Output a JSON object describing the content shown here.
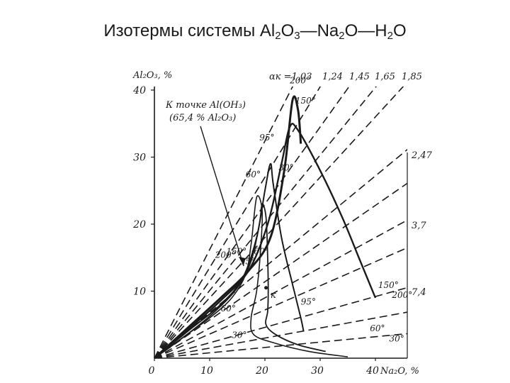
{
  "slide": {
    "title_main": "Изотермы системы Al",
    "title_sub1": "2",
    "title_mid1": "O",
    "title_sub2": "3",
    "title_mid2": "—Na",
    "title_sub3": "2",
    "title_mid3": "O—H",
    "title_sub4": "2",
    "title_end": "O"
  },
  "chart_data": {
    "type": "line",
    "title": "Изотермы системы Al2O3—Na2O—H2O",
    "xlabel": "Na₂O, %",
    "ylabel": "Al₂O₃, %",
    "xlim": [
      0,
      45
    ],
    "ylim": [
      0,
      42
    ],
    "x_ticks": [
      "0",
      "10",
      "20",
      "30",
      "40"
    ],
    "y_ticks": [
      "10",
      "20",
      "30",
      "40"
    ],
    "alpha_header": "αк =1,03",
    "caustic_ratio_rays": [
      {
        "label": "1,03",
        "slope": 1.62
      },
      {
        "label": "1,24",
        "slope": 1.35
      },
      {
        "label": "1,45",
        "slope": 1.15
      },
      {
        "label": "1,65",
        "slope": 1.01
      },
      {
        "label": "1,85",
        "slope": 0.9
      },
      {
        "label": "2,47",
        "slope": 0.68
      },
      {
        "label": "3,7",
        "slope": 0.45
      },
      {
        "label": "7,4",
        "slope": 0.23
      }
    ],
    "extra_rays": [
      {
        "slope": 0.57
      },
      {
        "slope": 0.36
      },
      {
        "slope": 0.15
      },
      {
        "slope": 0.08
      }
    ],
    "annotation": {
      "line1": "К точке Al(OH₃)",
      "line2": "(65,4 % Al₂O₃)"
    },
    "point_label": "к",
    "isotherms": [
      {
        "name": "200°",
        "points": [
          [
            0,
            0
          ],
          [
            6,
            4.5
          ],
          [
            12,
            9
          ],
          [
            17,
            13
          ],
          [
            21,
            18
          ],
          [
            23.5,
            28
          ],
          [
            25,
            38.5
          ],
          [
            26,
            37
          ],
          [
            26.5,
            32
          ]
        ]
      },
      {
        "name": "150°",
        "points": [
          [
            0,
            0
          ],
          [
            6,
            4.2
          ],
          [
            12,
            8.6
          ],
          [
            17,
            13
          ],
          [
            20.5,
            20
          ],
          [
            23,
            29
          ],
          [
            24.5,
            34.5
          ],
          [
            26,
            34
          ],
          [
            30,
            28
          ],
          [
            34,
            21
          ],
          [
            37,
            15
          ],
          [
            39,
            11
          ],
          [
            40,
            9
          ]
        ]
      },
      {
        "name": "95°",
        "points": [
          [
            0,
            0
          ],
          [
            6,
            4
          ],
          [
            12,
            8
          ],
          [
            16,
            12
          ],
          [
            18.5,
            18
          ],
          [
            20,
            25
          ],
          [
            21,
            29
          ],
          [
            21.5,
            26
          ],
          [
            23,
            18
          ],
          [
            25,
            11
          ],
          [
            26.5,
            6
          ],
          [
            27,
            4
          ]
        ]
      },
      {
        "name": "60°",
        "points": [
          [
            0,
            0
          ],
          [
            6,
            3.6
          ],
          [
            11,
            7
          ],
          [
            15,
            10.5
          ],
          [
            17.5,
            14.5
          ],
          [
            19,
            20
          ],
          [
            19.5,
            23
          ],
          [
            20.2,
            21
          ],
          [
            20.5,
            15
          ],
          [
            20.6,
            10
          ],
          [
            20.5,
            7
          ],
          [
            20.2,
            5
          ],
          [
            22,
            3.5
          ],
          [
            26,
            2
          ],
          [
            31,
            1
          ]
        ]
      },
      {
        "name": "30°",
        "points": [
          [
            0,
            0
          ],
          [
            5,
            3
          ],
          [
            10,
            6
          ],
          [
            14,
            9
          ],
          [
            16.5,
            12.5
          ],
          [
            17.5,
            17
          ],
          [
            18.5,
            24
          ],
          [
            19.5,
            22
          ],
          [
            19.2,
            16
          ],
          [
            18.5,
            10
          ],
          [
            17.5,
            6
          ],
          [
            18,
            3.5
          ],
          [
            22,
            2.2
          ],
          [
            28,
            1
          ],
          [
            35,
            0.2
          ]
        ]
      }
    ],
    "isotherm_labels": [
      {
        "text": "200°",
        "x": 24.5,
        "y": 41.0
      },
      {
        "text": "150°",
        "x": 25.5,
        "y": 38.0
      },
      {
        "text": "95°",
        "x": 19.0,
        "y": 32.5
      },
      {
        "text": "30°",
        "x": 22.5,
        "y": 28.0
      },
      {
        "text": "60°",
        "x": 16.5,
        "y": 27.0
      },
      {
        "text": "200°",
        "x": 11.0,
        "y": 15.0
      },
      {
        "text": "150°",
        "x": 13.0,
        "y": 15.5
      },
      {
        "text": "95°",
        "x": 15.5,
        "y": 14.0
      },
      {
        "text": "60°",
        "x": 18.0,
        "y": 15.5
      },
      {
        "text": "60°",
        "x": 12.0,
        "y": 7.0
      },
      {
        "text": "30°",
        "x": 14.0,
        "y": 3.0
      },
      {
        "text": "150°",
        "x": 40.5,
        "y": 10.5
      },
      {
        "text": "200°",
        "x": 43.0,
        "y": 9.0
      },
      {
        "text": "95°",
        "x": 26.5,
        "y": 8.0
      },
      {
        "text": "60°",
        "x": 39.0,
        "y": 4.0
      },
      {
        "text": "30°",
        "x": 42.5,
        "y": 2.5
      }
    ],
    "point_label_pos": {
      "x": 20.5,
      "y": 9.0
    },
    "grid": false
  },
  "style": {
    "ink": "#1a1a1a",
    "background": "#ffffff"
  }
}
